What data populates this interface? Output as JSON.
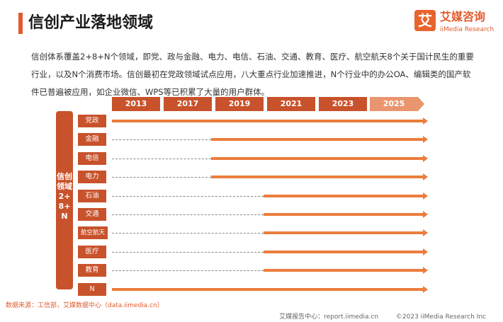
{
  "title": "信创产业落地领域",
  "logo": {
    "mark": "艾",
    "name_cn": "艾媒咨询",
    "name_en": "iiMedia Research"
  },
  "intro": "信创体系覆盖2+8+N个领域，即党、政与金融、电力、电信、石油、交通、教育、医疗、航空航天8个关于国计民生的重要行业，以及N个消费市场。信创最初在党政领域试点应用，八大重点行业加速推进，N个行业中的办公OA、编辑类的国产软件已普遍被应用，如企业微信、WPS等已积累了大量的用户群体。",
  "years": [
    "2013",
    "2017",
    "2019",
    "2021",
    "2023",
    "2025"
  ],
  "side_label": "信创领域2+8+N",
  "rows": [
    {
      "label": "党政",
      "start_year": 2013
    },
    {
      "label": "金融",
      "start_year": 2019
    },
    {
      "label": "电信",
      "start_year": 2019
    },
    {
      "label": "电力",
      "start_year": 2019
    },
    {
      "label": "石油",
      "start_year": 2021
    },
    {
      "label": "交通",
      "start_year": 2021
    },
    {
      "label": "航空航天",
      "start_year": 2021
    },
    {
      "label": "医疗",
      "start_year": 2021
    },
    {
      "label": "教育",
      "start_year": 2021
    },
    {
      "label": "N",
      "start_year": 2013
    }
  ],
  "colors": {
    "accent": "#e05a2b",
    "label_fill": "#c8522b",
    "bar": "#ec7d3c",
    "year_last": "#e9956e"
  },
  "footer": {
    "source": "数据来源：工信部，艾媒数据中心（data.iimedia.cn）",
    "report": "艾媒报告中心：report.iimedia.cn",
    "copyright": "©2023  iiMedia Research  Inc"
  }
}
